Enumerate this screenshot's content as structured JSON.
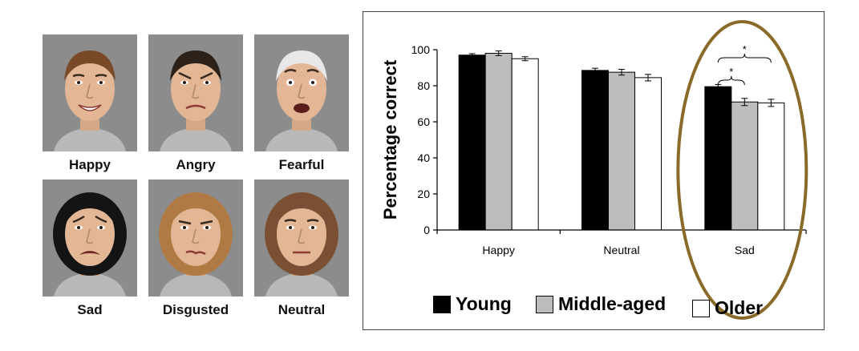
{
  "faces": [
    {
      "label": "Happy",
      "hair": "#7a4a28",
      "expr": "happy"
    },
    {
      "label": "Angry",
      "hair": "#2c2219",
      "expr": "angry"
    },
    {
      "label": "Fearful",
      "hair": "#e8e8e8",
      "expr": "fearful"
    },
    {
      "label": "Sad",
      "hair": "#141414",
      "expr": "sad"
    },
    {
      "label": "Disgusted",
      "hair": "#b07a45",
      "expr": "disgusted"
    },
    {
      "label": "Neutral",
      "hair": "#7a4f34",
      "expr": "neutral"
    }
  ],
  "chart_data": {
    "type": "bar",
    "ylabel": "Percentage correct",
    "ylim": [
      0,
      100
    ],
    "yticks": [
      0,
      20,
      40,
      60,
      80,
      100
    ],
    "categories": [
      "Happy",
      "Neutral",
      "Sad"
    ],
    "series": [
      {
        "name": "Young",
        "color": "#000000",
        "values": [
          97,
          88.5,
          79.5
        ],
        "errors": [
          0.8,
          1.2,
          1.2
        ]
      },
      {
        "name": "Middle-aged",
        "color": "#bdbdbd",
        "values": [
          98,
          87.5,
          71
        ],
        "errors": [
          1.3,
          1.6,
          2.0
        ]
      },
      {
        "name": "Older",
        "color": "#ffffff",
        "values": [
          95,
          84.5,
          70.5
        ],
        "errors": [
          1.1,
          1.8,
          2.0
        ]
      }
    ],
    "significance": [
      {
        "category": "Sad",
        "from_series": 0,
        "to_series": 1,
        "label": "*"
      },
      {
        "category": "Sad",
        "from_series": 0,
        "to_series": 2,
        "label": "*"
      }
    ],
    "highlight": {
      "category": "Sad",
      "color": "#8a6a28"
    },
    "grid": false,
    "legend_position": "bottom"
  }
}
